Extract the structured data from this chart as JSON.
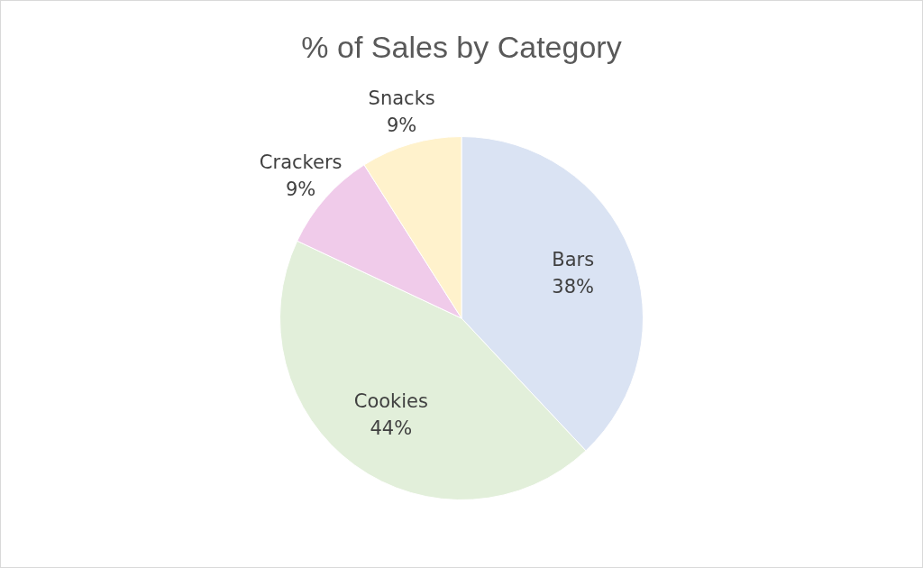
{
  "chart_data": {
    "type": "pie",
    "title": "% of Sales by Category",
    "categories": [
      "Bars",
      "Cookies",
      "Crackers",
      "Snacks"
    ],
    "values": [
      38,
      44,
      9,
      9
    ],
    "colors": [
      "#dae3f3",
      "#e2efda",
      "#f0cbea",
      "#fff2cc"
    ],
    "value_labels": [
      "38%",
      "44%",
      "9%",
      "9%"
    ],
    "legend": false
  }
}
